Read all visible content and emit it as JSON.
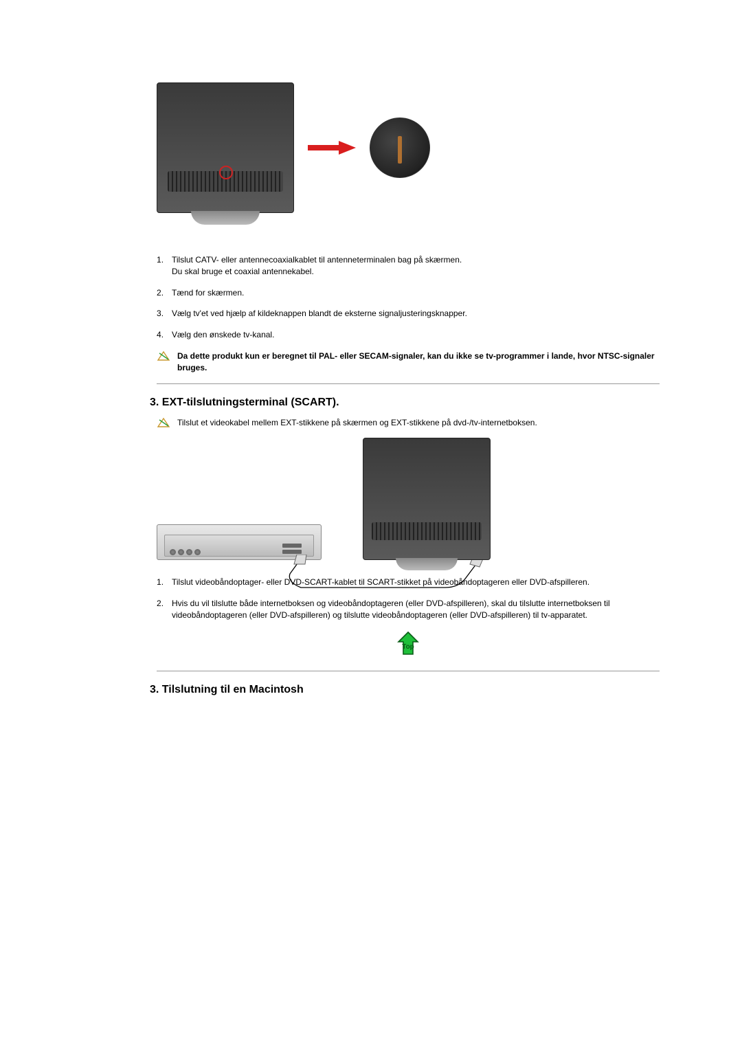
{
  "section1": {
    "steps": [
      "Tilslut CATV- eller antennecoaxialkablet til antenneterminalen bag på skærmen.\nDu skal bruge et coaxial antennekabel.",
      "Tænd for skærmen.",
      "Vælg tv'et ved hjælp af kildeknappen blandt de eksterne signaljusteringsknapper.",
      "Vælg den ønskede tv-kanal."
    ],
    "note": "Da dette produkt kun er beregnet til PAL- eller SECAM-signaler, kan du ikke se tv-programmer i lande, hvor NTSC-signaler bruges."
  },
  "section2": {
    "title": "3. EXT-tilslutningsterminal (SCART).",
    "note": "Tilslut et videokabel mellem EXT-stikkene på skærmen og EXT-stikkene på dvd-/tv-internetboksen.",
    "steps": [
      "Tilslut videobåndoptager- eller DVD-SCART-kablet til SCART-stikket på videobåndoptageren eller DVD-afspilleren.",
      "Hvis du vil tilslutte både internetboksen og videobåndoptageren (eller DVD-afspilleren), skal du tilslutte internetboksen til videobåndoptageren (eller DVD-afspilleren) og tilslutte videobåndoptageren (eller DVD-afspilleren) til tv-apparatet."
    ]
  },
  "section3": {
    "title": "3. Tilslutning til en Macintosh"
  },
  "topLabel": "Top",
  "colors": {
    "arrow": "#d91e1e",
    "top_arrow_fill": "#1fbf3a",
    "top_arrow_stroke": "#0a5c17",
    "top_text": "#0a5c17",
    "note_tri_fill": "#ffffff",
    "note_tri_stroke": "#c9992f"
  }
}
